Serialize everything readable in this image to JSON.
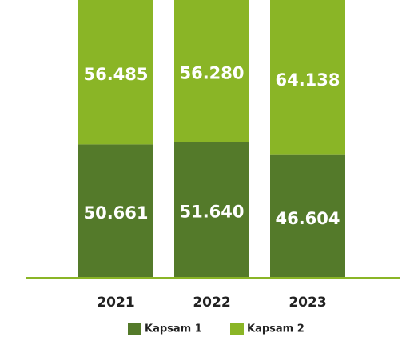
{
  "chart_data": {
    "type": "stacked_bar",
    "categories": [
      "2021",
      "2022",
      "2023"
    ],
    "series": [
      {
        "name": "Kapsam 1",
        "color": "#547a2a",
        "values": [
          50661,
          51640,
          46604
        ],
        "value_labels": [
          "50.661",
          "51.640",
          "46.604"
        ]
      },
      {
        "name": "Kapsam 2",
        "color": "#8ab526",
        "values": [
          56485,
          56280,
          64138
        ],
        "value_labels": [
          "56.485",
          "56.280",
          "64.138"
        ]
      }
    ]
  }
}
